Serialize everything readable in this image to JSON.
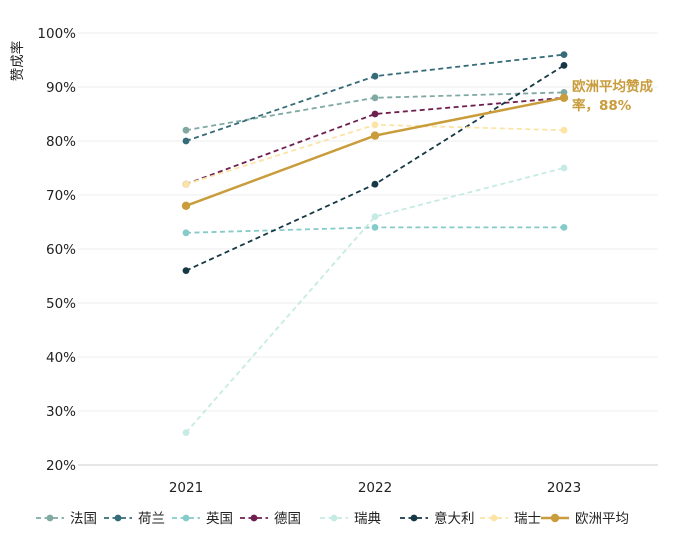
{
  "chart_data": {
    "type": "line",
    "ylabel": "赞成率",
    "xlabel": "",
    "title": "",
    "x": [
      "2021",
      "2022",
      "2023"
    ],
    "ylim": [
      20,
      100
    ],
    "yticks": [
      "20%",
      "30%",
      "40%",
      "50%",
      "60%",
      "70%",
      "80%",
      "90%",
      "100%"
    ],
    "ytick_values": [
      20,
      30,
      40,
      50,
      60,
      70,
      80,
      90,
      100
    ],
    "grid": true,
    "legend_position": "bottom",
    "series": [
      {
        "name": "法国",
        "values": [
          82,
          88,
          89
        ],
        "color": "#7fa9a2",
        "dashed": true
      },
      {
        "name": "荷兰",
        "values": [
          80,
          92,
          96
        ],
        "color": "#356c79",
        "dashed": true
      },
      {
        "name": "英国",
        "values": [
          63,
          64,
          64
        ],
        "color": "#85cbca",
        "dashed": true
      },
      {
        "name": "德国",
        "values": [
          72,
          85,
          88
        ],
        "color": "#6e1f4f",
        "dashed": true
      },
      {
        "name": "瑞典",
        "values": [
          26,
          66,
          75
        ],
        "color": "#c5ebe4",
        "dashed": true
      },
      {
        "name": "意大利",
        "values": [
          56,
          72,
          94
        ],
        "color": "#163844",
        "dashed": true
      },
      {
        "name": "瑞士",
        "values": [
          72,
          83,
          82
        ],
        "color": "#fbe4a6",
        "dashed": true
      },
      {
        "name": "欧洲平均",
        "values": [
          68,
          81,
          88
        ],
        "color": "#c99c3c",
        "dashed": false
      }
    ],
    "annotation": {
      "lines": [
        "欧洲平均赞成",
        "率，88%"
      ],
      "color": "#c99c3c"
    }
  }
}
